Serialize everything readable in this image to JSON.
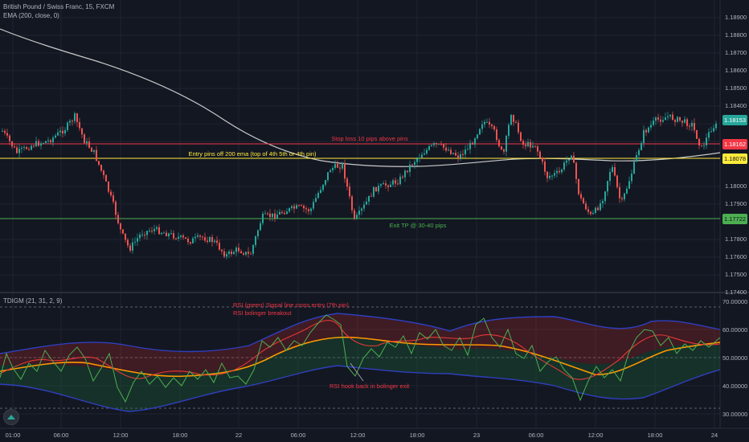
{
  "header": {
    "symbol_line": "British Pound / Swiss Franc, 15, FXCM",
    "ema_line": "EMA (200, close, 0)"
  },
  "indicator": {
    "name_line": "TDIGM (21, 31, 2, 9)"
  },
  "annotations": {
    "stop_loss": "Stop loss 10 pips above pins",
    "entry": "Entry pins off 200 ema (top of 4th 5th or 4th pin)",
    "exit_tp": "Exit TP @ 30-40 pips",
    "rsi_signal": "RSI (green) Signal line cross entry (7th pin)",
    "rsi_bollinger": "RSI bolinger breakout",
    "rsi_hook": "RSI hook back in bolinger exit"
  },
  "price_axis": {
    "ticks": [
      "1.18900",
      "1.18800",
      "1.18700",
      "1.18600",
      "1.18500",
      "1.18400",
      "1.18000",
      "1.17900",
      "1.17800",
      "1.17600",
      "1.17500",
      "1.17400"
    ],
    "tags": {
      "current": "1.18153",
      "stop": "1.18162",
      "entry": "1.18078",
      "exit": "1.17722"
    }
  },
  "indicator_axis": {
    "ticks": [
      "70.00000",
      "60.00000",
      "50.00000",
      "40.00000",
      "30.00000"
    ]
  },
  "time_axis": {
    "ticks": [
      "01:00",
      "06:00",
      "12:00",
      "18:00",
      "22",
      "06:00",
      "12:00",
      "18:00",
      "23",
      "06:00",
      "12:00",
      "18:00",
      "24"
    ]
  },
  "colors": {
    "background": "#131722",
    "bull": "#26a69a",
    "bear": "#ef5350",
    "ema": "#c9c9c9",
    "stop_line": "#f23645",
    "entry_line": "#ffeb3b",
    "exit_line": "#4caf50",
    "current_tag": "#26a69a"
  },
  "icons": {
    "logo": "tradingview-logo-icon"
  }
}
